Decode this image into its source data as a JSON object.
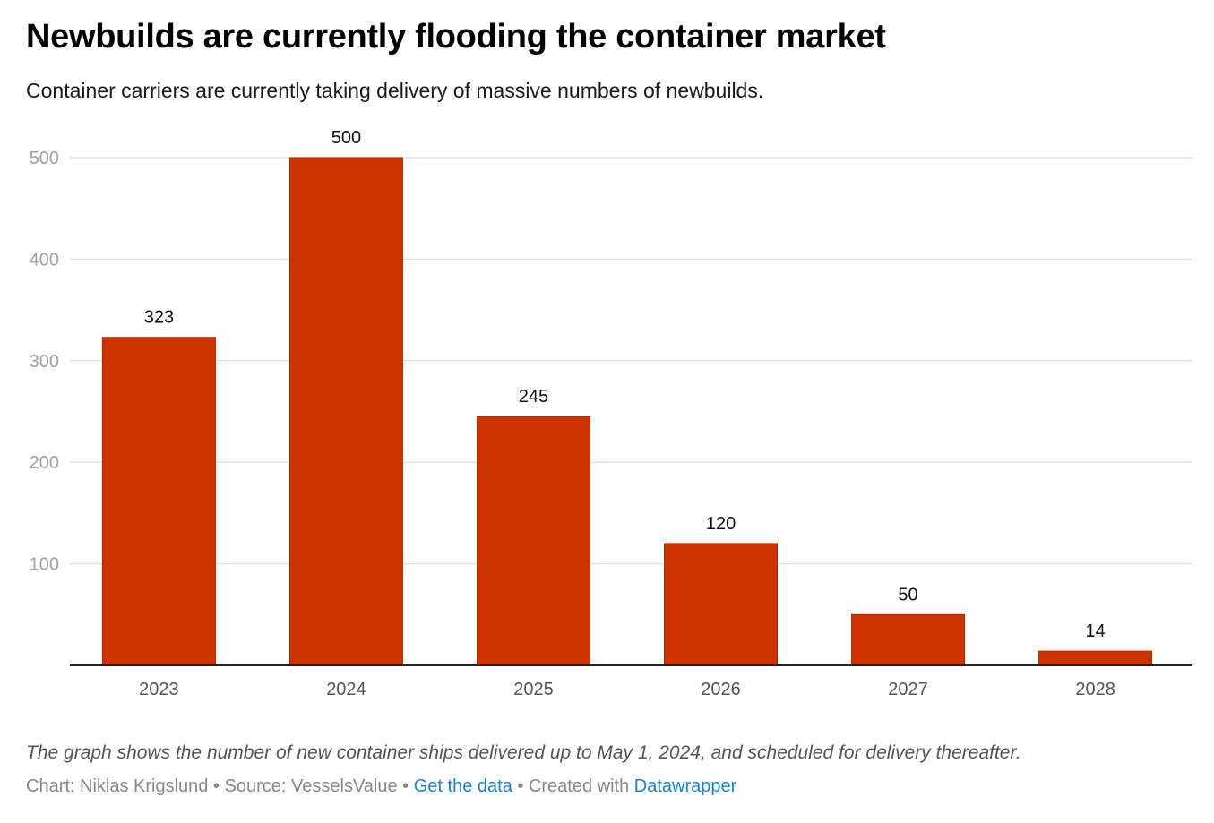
{
  "chart_data": {
    "type": "bar",
    "title": "Newbuilds are currently flooding the container market",
    "subtitle": "Container carriers are currently taking delivery of massive numbers of newbuilds.",
    "categories": [
      "2023",
      "2024",
      "2025",
      "2026",
      "2027",
      "2028"
    ],
    "values": [
      323,
      500,
      245,
      120,
      50,
      14
    ],
    "xlabel": "",
    "ylabel": "",
    "ylim": [
      0,
      500
    ],
    "yticks": [
      100,
      200,
      300,
      400,
      500
    ],
    "grid": true,
    "bar_color": "#cc3300",
    "bar_border": "#a82a00",
    "note": "The graph shows the number of new container ships delivered up to May 1, 2024, and scheduled for delivery thereafter."
  },
  "footer": {
    "chart_by": "Chart: Niklas Krigslund",
    "sep": " • ",
    "source": "Source: VesselsValue",
    "get_data": "Get the data",
    "created_with": "Created with",
    "datawrapper": "Datawrapper"
  }
}
